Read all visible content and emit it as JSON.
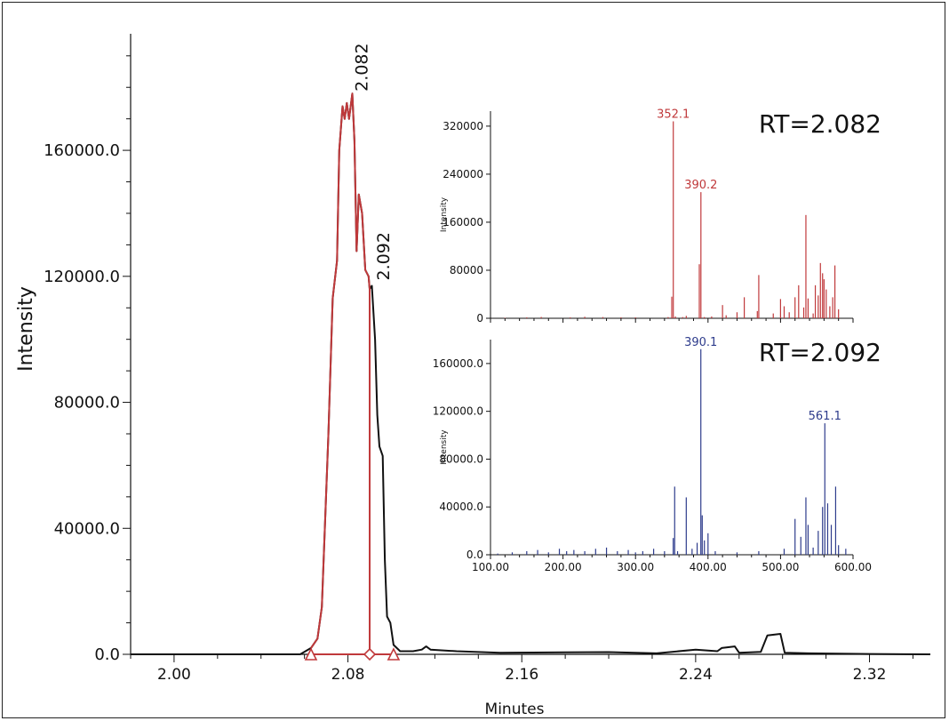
{
  "chart_data": [
    {
      "type": "line",
      "title": "",
      "xlabel": "Minutes",
      "ylabel": "Intensity",
      "xlim": [
        1.98,
        2.348
      ],
      "ylim": [
        0,
        197000
      ],
      "xticks": [
        "2.00",
        "2.08",
        "2.16",
        "2.24",
        "2.32"
      ],
      "yticks": [
        "0.0",
        "40000.0",
        "80000.0",
        "120000.0",
        "160000.0"
      ],
      "colors": {
        "trace": "#111111",
        "integrated": "#c0393b"
      },
      "peak_labels": [
        "2.082",
        "2.092"
      ],
      "peaks": [
        {
          "label": "2.082",
          "x": 2.082,
          "y": 177000
        },
        {
          "label": "2.092",
          "x": 2.092,
          "y": 117000
        }
      ],
      "integration": {
        "start": 2.063,
        "apex": 2.09,
        "end": 2.101
      },
      "series": [
        {
          "name": "",
          "role": "trace",
          "x": [
            1.98,
            2.04,
            2.058,
            2.063,
            2.066,
            2.068,
            2.071,
            2.073,
            2.075,
            2.076,
            2.0775,
            2.0785,
            2.0795,
            2.0805,
            2.082,
            2.083,
            2.084,
            2.085,
            2.0865,
            2.088,
            2.0895,
            2.09,
            2.091,
            2.0925,
            2.0935,
            2.0945,
            2.096,
            2.097,
            2.098,
            2.0995,
            2.101,
            2.104,
            2.108,
            2.11,
            2.114,
            2.116,
            2.118,
            2.13,
            2.15,
            2.2,
            2.222,
            2.24,
            2.25,
            2.252,
            2.258,
            2.26,
            2.27,
            2.273,
            2.279,
            2.281,
            2.292,
            2.32,
            2.348
          ],
          "y": [
            0,
            0,
            0,
            2000,
            5000,
            15000,
            70000,
            113000,
            125000,
            160000,
            174000,
            170000,
            175000,
            170000,
            178000,
            163000,
            128000,
            146000,
            140000,
            122000,
            120000,
            116000,
            117000,
            100000,
            76000,
            66000,
            63000,
            30000,
            12000,
            10000,
            3000,
            1000,
            1000,
            1000,
            1500,
            2500,
            1500,
            1000,
            500,
            700,
            300,
            1500,
            1000,
            2000,
            2500,
            500,
            800,
            6000,
            6500,
            500,
            300,
            100,
            0
          ]
        },
        {
          "name": "",
          "role": "integrated",
          "x": [
            2.063,
            2.066,
            2.068,
            2.071,
            2.073,
            2.075,
            2.076,
            2.0775,
            2.0785,
            2.0795,
            2.0805,
            2.082,
            2.083,
            2.084,
            2.085,
            2.0865,
            2.088,
            2.0895,
            2.09
          ],
          "y": [
            2000,
            5000,
            15000,
            70000,
            113000,
            125000,
            160000,
            174000,
            170000,
            175000,
            170000,
            178000,
            163000,
            128000,
            146000,
            140000,
            122000,
            120000,
            116000
          ]
        }
      ]
    },
    {
      "type": "bar",
      "title": "RT=2.082",
      "xlabel": "",
      "ylabel": "Intensity",
      "xlim": [
        100,
        600
      ],
      "ylim": [
        0,
        345000
      ],
      "yticks": [
        "0",
        "80000",
        "160000",
        "240000",
        "320000"
      ],
      "color": "#c0393b",
      "labels": [
        {
          "text": "352.1",
          "x": 352.1,
          "y": 328000
        },
        {
          "text": "390.2",
          "x": 390.2,
          "y": 210000
        }
      ],
      "peaks": [
        [
          120,
          800
        ],
        [
          150,
          1500
        ],
        [
          170,
          2200
        ],
        [
          210,
          1500
        ],
        [
          230,
          2500
        ],
        [
          255,
          2000
        ],
        [
          280,
          1500
        ],
        [
          300,
          1500
        ],
        [
          345,
          2000
        ],
        [
          350,
          36000
        ],
        [
          352.1,
          328000
        ],
        [
          355,
          3000
        ],
        [
          365,
          2000
        ],
        [
          370,
          4000
        ],
        [
          388,
          90000
        ],
        [
          390.2,
          210000
        ],
        [
          395,
          2000
        ],
        [
          405,
          3000
        ],
        [
          420,
          22000
        ],
        [
          425,
          5000
        ],
        [
          440,
          10000
        ],
        [
          450,
          35000
        ],
        [
          468,
          12000
        ],
        [
          470,
          72000
        ],
        [
          490,
          8000
        ],
        [
          500,
          32000
        ],
        [
          505,
          20000
        ],
        [
          512,
          10000
        ],
        [
          520,
          35000
        ],
        [
          525,
          55000
        ],
        [
          532,
          18000
        ],
        [
          535,
          172000
        ],
        [
          538,
          33000
        ],
        [
          545,
          8000
        ],
        [
          548,
          55000
        ],
        [
          552,
          38000
        ],
        [
          555,
          92000
        ],
        [
          558,
          75000
        ],
        [
          560,
          65000
        ],
        [
          563,
          48000
        ],
        [
          568,
          20000
        ],
        [
          572,
          35000
        ],
        [
          575,
          88000
        ],
        [
          580,
          15000
        ]
      ]
    },
    {
      "type": "bar",
      "title": "RT=2.092",
      "xlabel": "",
      "ylabel": "Intensity",
      "xlim": [
        100,
        600
      ],
      "ylim": [
        0,
        180000
      ],
      "xticks": [
        "100.00",
        "200.00",
        "300.00",
        "400.00",
        "500.00",
        "600.00"
      ],
      "yticks": [
        "0.0",
        "40000.0",
        "80000.0",
        "120000.0",
        "160000.0"
      ],
      "color": "#2e3c8c",
      "labels": [
        {
          "text": "390.1",
          "x": 390.1,
          "y": 172000
        },
        {
          "text": "561.1",
          "x": 561.1,
          "y": 110000
        }
      ],
      "peaks": [
        [
          110,
          1000
        ],
        [
          130,
          2000
        ],
        [
          150,
          3000
        ],
        [
          165,
          4000
        ],
        [
          180,
          2000
        ],
        [
          195,
          5000
        ],
        [
          205,
          3000
        ],
        [
          215,
          4000
        ],
        [
          230,
          3000
        ],
        [
          245,
          5000
        ],
        [
          260,
          6000
        ],
        [
          275,
          3000
        ],
        [
          290,
          4000
        ],
        [
          300,
          2000
        ],
        [
          310,
          3000
        ],
        [
          325,
          5000
        ],
        [
          340,
          3000
        ],
        [
          352,
          14000
        ],
        [
          354,
          57000
        ],
        [
          358,
          3000
        ],
        [
          370,
          48000
        ],
        [
          378,
          5000
        ],
        [
          385,
          10000
        ],
        [
          390.1,
          172000
        ],
        [
          392,
          33000
        ],
        [
          395,
          12000
        ],
        [
          400,
          18000
        ],
        [
          410,
          3000
        ],
        [
          440,
          2000
        ],
        [
          470,
          3000
        ],
        [
          505,
          5000
        ],
        [
          520,
          30000
        ],
        [
          528,
          15000
        ],
        [
          535,
          48000
        ],
        [
          538,
          25000
        ],
        [
          545,
          6000
        ],
        [
          552,
          20000
        ],
        [
          558,
          40000
        ],
        [
          561.1,
          110000
        ],
        [
          565,
          43000
        ],
        [
          570,
          25000
        ],
        [
          576,
          57000
        ],
        [
          580,
          8000
        ],
        [
          590,
          5000
        ]
      ]
    }
  ]
}
